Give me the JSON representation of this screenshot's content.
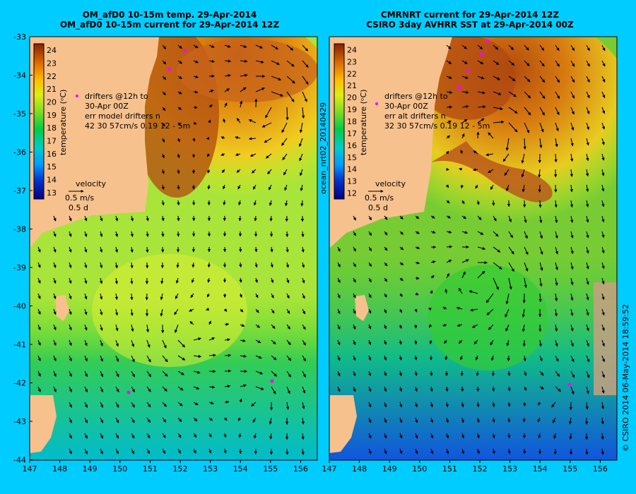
{
  "left_panel": {
    "title_line1": "OM_afD0 10-15m temp. 29-Apr-2014",
    "title_line2": "OM_afD0 10-15m current for 29-Apr-2014 12Z",
    "colorbar_labels": [
      "24",
      "23",
      "22",
      "21",
      "20",
      "19",
      "18",
      "17",
      "16",
      "15",
      "14",
      "13"
    ],
    "colorbar_title": "temperature (ᵒC)",
    "drifters": [
      "drifters @12h to",
      "30-Apr 00Z",
      "err model drifters n",
      "42    30    57cm/s 0.19 12 - 5m"
    ],
    "velocity_label": "velocity",
    "velocity_scale": [
      "0.5 m/s",
      "0.5 d"
    ]
  },
  "right_panel": {
    "title_line1": "CMRNRT current for 29-Apr-2014 12Z",
    "title_line2": "CSIRO 3day AVHRR SST at 29-Apr-2014 00Z",
    "colorbar_labels": [
      "24",
      "23",
      "22",
      "21",
      "20",
      "19",
      "18",
      "17",
      "16",
      "15",
      "14",
      "13",
      "12"
    ],
    "colorbar_title": "temperature (ᵒC)",
    "drifters": [
      "drifters @12h to",
      "30-Apr 00Z",
      "err alt drifters n",
      "32 30 57cm/s 0.19 12 - 5m"
    ],
    "velocity_label": "velocity",
    "velocity_scale": [
      "0.5 m/s",
      "0.5 d"
    ],
    "side_label": "ocean_nrt02_20140429"
  },
  "y_ticks": [
    "-33",
    "-34",
    "-35",
    "-36",
    "-37",
    "-38",
    "-39",
    "-40",
    "-41",
    "-42",
    "-43",
    "-44"
  ],
  "x_ticks": [
    "147",
    "148",
    "149",
    "150",
    "151",
    "152",
    "153",
    "154",
    "155",
    "156"
  ],
  "footer_right": "© CSIRO 2014   06-May-2014 18:59:52",
  "colors": {
    "background": "#00ccff",
    "land": "#f7c18e",
    "drifter": "#ff00ff"
  }
}
